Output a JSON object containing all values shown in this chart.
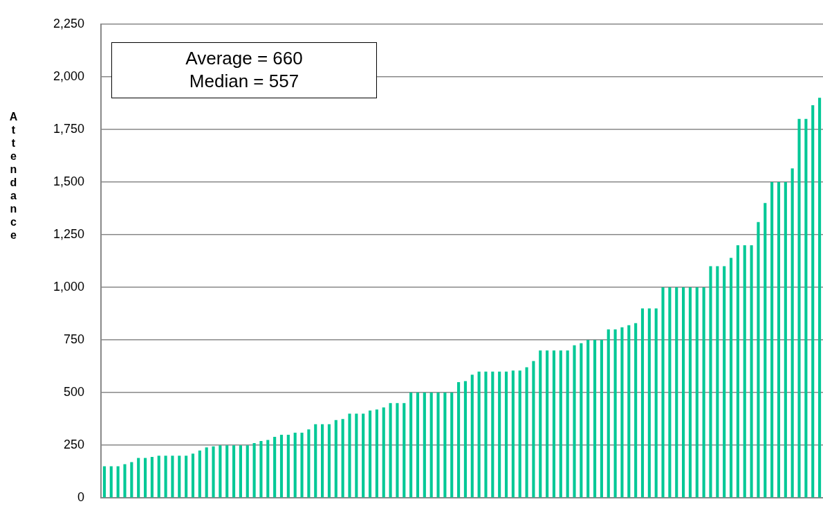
{
  "chart_data": {
    "type": "bar",
    "ylabel": "Attendance",
    "categories": [
      null,
      null,
      null,
      null,
      null,
      null,
      null,
      null,
      null,
      null,
      null,
      null,
      null,
      null,
      null,
      null,
      null,
      null,
      null,
      null,
      null,
      null,
      null,
      null,
      null,
      null,
      null,
      null,
      null,
      null,
      null,
      null,
      null,
      null,
      null,
      null,
      null,
      null,
      null,
      null,
      null,
      null,
      null,
      null,
      null,
      null,
      null,
      null,
      null,
      null,
      null,
      null,
      null,
      null,
      null,
      null,
      null,
      null,
      null,
      null,
      null,
      null,
      null,
      null,
      null,
      null,
      null,
      null,
      null,
      null,
      null,
      null,
      null,
      null,
      null,
      null,
      null,
      null,
      null,
      null,
      null,
      null,
      null,
      null,
      null,
      null,
      null,
      null,
      null,
      null,
      null,
      null,
      null,
      null,
      null,
      null,
      null,
      null,
      null,
      null,
      null,
      null,
      null,
      null,
      null,
      null
    ],
    "values": [
      150,
      150,
      150,
      160,
      170,
      190,
      190,
      195,
      200,
      200,
      200,
      200,
      200,
      210,
      225,
      240,
      245,
      250,
      250,
      250,
      250,
      250,
      260,
      270,
      275,
      290,
      300,
      300,
      310,
      310,
      325,
      350,
      350,
      350,
      370,
      375,
      400,
      400,
      400,
      415,
      420,
      430,
      450,
      450,
      450,
      500,
      500,
      500,
      500,
      500,
      500,
      500,
      550,
      555,
      585,
      600,
      600,
      600,
      600,
      600,
      605,
      605,
      620,
      650,
      700,
      700,
      700,
      700,
      700,
      725,
      735,
      750,
      750,
      750,
      800,
      800,
      810,
      820,
      830,
      900,
      900,
      900,
      1000,
      1000,
      1000,
      1000,
      1000,
      1000,
      1000,
      1100,
      1100,
      1100,
      1140,
      1200,
      1200,
      1200,
      1310,
      1400,
      1500,
      1500,
      1500,
      1565,
      1800,
      1800,
      1865,
      1900
    ],
    "color": "#00c896",
    "ylim": [
      0,
      2250
    ],
    "yticks": [
      {
        "value": 0,
        "label": "0"
      },
      {
        "value": 250,
        "label": "250"
      },
      {
        "value": 500,
        "label": "500"
      },
      {
        "value": 750,
        "label": "750"
      },
      {
        "value": 1000,
        "label": "1,000"
      },
      {
        "value": 1250,
        "label": "1,250"
      },
      {
        "value": 1500,
        "label": "1,500"
      },
      {
        "value": 1750,
        "label": "1,750"
      },
      {
        "value": 2000,
        "label": "2,000"
      },
      {
        "value": 2250,
        "label": "2,250"
      }
    ],
    "grid": "y",
    "legend": false,
    "tick_labels": "y",
    "annotations": [
      "Average = 660",
      "Median = 557"
    ]
  }
}
